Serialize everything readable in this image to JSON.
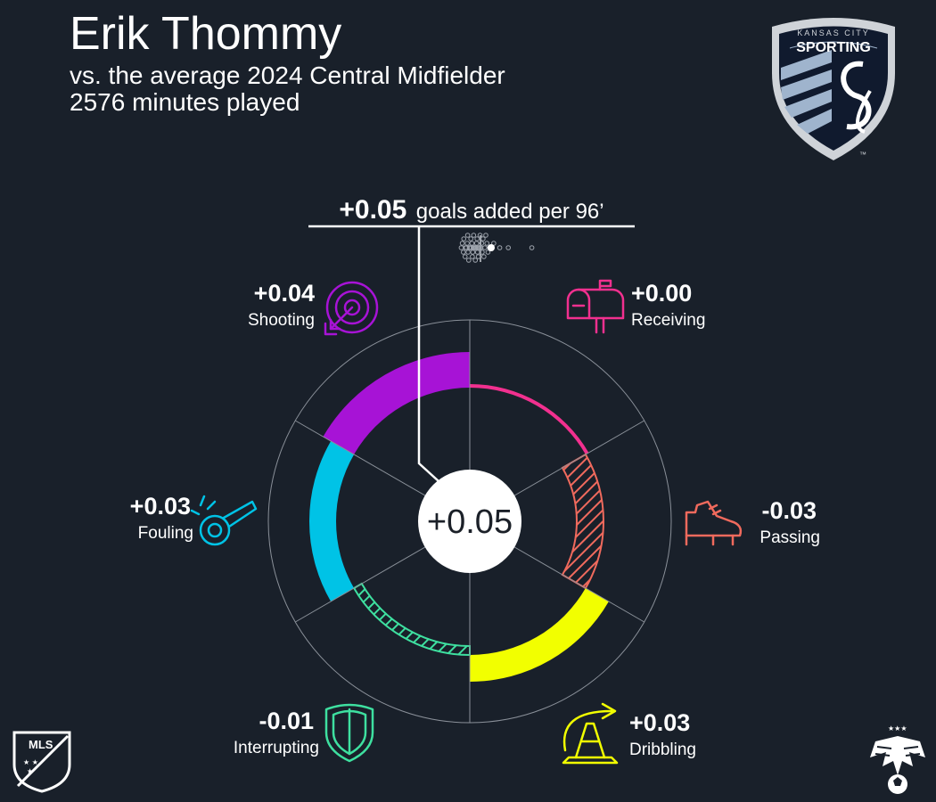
{
  "header": {
    "title": "Erik Thommy",
    "subtitle": "vs. the average 2024 Central Midfielder",
    "minutes": "2576 minutes played"
  },
  "badge": {
    "top_text": "KANSAS CITY",
    "name": "SPORTING",
    "monogram": "SC",
    "tm": "™"
  },
  "mls_logo": {
    "text": "MLS"
  },
  "colors": {
    "background": "#19202a",
    "shooting": "#a713d6",
    "receiving": "#f2308f",
    "passing": "#f06a5d",
    "dribbling": "#f2ff00",
    "interrupting": "#3ee0a0",
    "fouling": "#00c3e6",
    "grid": "#8a9099"
  },
  "chart_data": {
    "type": "radial_bar",
    "total": {
      "value": "+0.05",
      "label_value": "+0.05",
      "label_text": "goals added per 96’"
    },
    "segments": [
      {
        "name": "Shooting",
        "value": 0.04,
        "label": "+0.04",
        "icon": "target-icon",
        "color": "#a713d6"
      },
      {
        "name": "Receiving",
        "value": 0.0,
        "label": "+0.00",
        "icon": "mailbox-icon",
        "color": "#f2308f"
      },
      {
        "name": "Passing",
        "value": -0.03,
        "label": "-0.03",
        "icon": "boot-icon",
        "color": "#f06a5d"
      },
      {
        "name": "Dribbling",
        "value": 0.03,
        "label": "+0.03",
        "icon": "cone-icon",
        "color": "#f2ff00"
      },
      {
        "name": "Interrupting",
        "value": -0.01,
        "label": "-0.01",
        "icon": "shield-icon",
        "color": "#3ee0a0"
      },
      {
        "name": "Fouling",
        "value": 0.03,
        "label": "+0.03",
        "icon": "whistle-icon",
        "color": "#00c3e6"
      }
    ],
    "distribution": {
      "highlight": 0.05,
      "average": 0.0,
      "values": [
        -0.09,
        -0.085,
        -0.08,
        -0.078,
        -0.072,
        -0.07,
        -0.066,
        -0.062,
        -0.06,
        -0.058,
        -0.055,
        -0.052,
        -0.05,
        -0.048,
        -0.045,
        -0.043,
        -0.04,
        -0.038,
        -0.036,
        -0.034,
        -0.032,
        -0.03,
        -0.028,
        -0.026,
        -0.024,
        -0.022,
        -0.02,
        -0.018,
        -0.016,
        -0.014,
        -0.012,
        -0.01,
        -0.008,
        -0.006,
        -0.004,
        -0.002,
        0.002,
        0.005,
        0.008,
        0.012,
        0.016,
        0.02,
        0.025,
        0.03,
        0.035,
        0.042,
        0.062,
        0.09,
        0.13,
        0.24
      ]
    }
  }
}
